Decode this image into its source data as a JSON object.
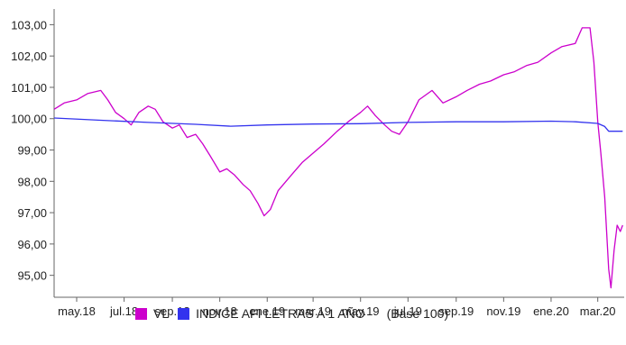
{
  "chart_data": {
    "type": "line",
    "title": "",
    "xlabel": "",
    "ylabel": "",
    "ylim": [
      94.3,
      103.5
    ],
    "yticks": [
      95,
      96,
      97,
      98,
      99,
      100,
      101,
      102,
      103
    ],
    "ytick_labels": [
      "95,00",
      "96,00",
      "97,00",
      "98,00",
      "99,00",
      "100,00",
      "101,00",
      "102,00",
      "103,00"
    ],
    "x_start": "2018-04-02",
    "x_end": "2020-04-04",
    "xticks": [
      {
        "date": "2018-05-01",
        "label": "may.18"
      },
      {
        "date": "2018-07-01",
        "label": "jul.18"
      },
      {
        "date": "2018-09-01",
        "label": "sep.18"
      },
      {
        "date": "2018-11-01",
        "label": "nov.18"
      },
      {
        "date": "2019-01-01",
        "label": "ene.19"
      },
      {
        "date": "2019-03-01",
        "label": "mar.19"
      },
      {
        "date": "2019-05-01",
        "label": "may.19"
      },
      {
        "date": "2019-07-01",
        "label": "jul.19"
      },
      {
        "date": "2019-09-01",
        "label": "sep.19"
      },
      {
        "date": "2019-11-01",
        "label": "nov.19"
      },
      {
        "date": "2020-01-01",
        "label": "ene.20"
      },
      {
        "date": "2020-03-01",
        "label": "mar.20"
      }
    ],
    "grid": false,
    "legend_position": "bottom",
    "legend_note": "(Base 100)",
    "series": [
      {
        "name": "VL",
        "color": "#cc00cc",
        "points": [
          [
            "2018-04-02",
            100.3
          ],
          [
            "2018-04-15",
            100.5
          ],
          [
            "2018-05-01",
            100.6
          ],
          [
            "2018-05-15",
            100.8
          ],
          [
            "2018-06-01",
            100.9
          ],
          [
            "2018-06-10",
            100.6
          ],
          [
            "2018-06-20",
            100.2
          ],
          [
            "2018-07-01",
            100.0
          ],
          [
            "2018-07-10",
            99.8
          ],
          [
            "2018-07-20",
            100.2
          ],
          [
            "2018-08-01",
            100.4
          ],
          [
            "2018-08-10",
            100.3
          ],
          [
            "2018-08-20",
            99.9
          ],
          [
            "2018-09-01",
            99.7
          ],
          [
            "2018-09-10",
            99.8
          ],
          [
            "2018-09-20",
            99.4
          ],
          [
            "2018-10-01",
            99.5
          ],
          [
            "2018-10-10",
            99.2
          ],
          [
            "2018-10-20",
            98.8
          ],
          [
            "2018-11-01",
            98.3
          ],
          [
            "2018-11-10",
            98.4
          ],
          [
            "2018-11-20",
            98.2
          ],
          [
            "2018-12-01",
            97.9
          ],
          [
            "2018-12-10",
            97.7
          ],
          [
            "2018-12-20",
            97.3
          ],
          [
            "2018-12-28",
            96.9
          ],
          [
            "2019-01-05",
            97.1
          ],
          [
            "2019-01-15",
            97.7
          ],
          [
            "2019-02-01",
            98.2
          ],
          [
            "2019-02-15",
            98.6
          ],
          [
            "2019-03-01",
            98.9
          ],
          [
            "2019-03-15",
            99.2
          ],
          [
            "2019-04-01",
            99.6
          ],
          [
            "2019-04-15",
            99.9
          ],
          [
            "2019-05-01",
            100.2
          ],
          [
            "2019-05-10",
            100.4
          ],
          [
            "2019-05-20",
            100.1
          ],
          [
            "2019-06-01",
            99.8
          ],
          [
            "2019-06-10",
            99.6
          ],
          [
            "2019-06-20",
            99.5
          ],
          [
            "2019-07-01",
            99.9
          ],
          [
            "2019-07-15",
            100.6
          ],
          [
            "2019-08-01",
            100.9
          ],
          [
            "2019-08-15",
            100.5
          ],
          [
            "2019-09-01",
            100.7
          ],
          [
            "2019-09-15",
            100.9
          ],
          [
            "2019-10-01",
            101.1
          ],
          [
            "2019-10-15",
            101.2
          ],
          [
            "2019-11-01",
            101.4
          ],
          [
            "2019-11-15",
            101.5
          ],
          [
            "2019-12-01",
            101.7
          ],
          [
            "2019-12-15",
            101.8
          ],
          [
            "2020-01-01",
            102.1
          ],
          [
            "2020-01-15",
            102.3
          ],
          [
            "2020-02-01",
            102.4
          ],
          [
            "2020-02-10",
            102.9
          ],
          [
            "2020-02-20",
            102.9
          ],
          [
            "2020-02-25",
            101.8
          ],
          [
            "2020-03-01",
            99.9
          ],
          [
            "2020-03-05",
            98.9
          ],
          [
            "2020-03-10",
            97.5
          ],
          [
            "2020-03-15",
            95.2
          ],
          [
            "2020-03-18",
            94.6
          ],
          [
            "2020-03-22",
            95.8
          ],
          [
            "2020-03-26",
            96.6
          ],
          [
            "2020-03-30",
            96.4
          ],
          [
            "2020-04-02",
            96.6
          ]
        ]
      },
      {
        "name": "INDICE AFI LETRAS A 1 AÑO",
        "color": "#3333ee",
        "points": [
          [
            "2018-04-02",
            100.02
          ],
          [
            "2018-06-01",
            99.95
          ],
          [
            "2018-08-01",
            99.88
          ],
          [
            "2018-10-01",
            99.82
          ],
          [
            "2018-11-15",
            99.76
          ],
          [
            "2019-01-01",
            99.8
          ],
          [
            "2019-03-01",
            99.83
          ],
          [
            "2019-05-01",
            99.84
          ],
          [
            "2019-07-01",
            99.88
          ],
          [
            "2019-09-01",
            99.9
          ],
          [
            "2019-11-01",
            99.9
          ],
          [
            "2020-01-01",
            99.92
          ],
          [
            "2020-02-01",
            99.9
          ],
          [
            "2020-03-01",
            99.85
          ],
          [
            "2020-03-10",
            99.75
          ],
          [
            "2020-03-15",
            99.6
          ],
          [
            "2020-04-02",
            99.6
          ]
        ]
      }
    ]
  }
}
